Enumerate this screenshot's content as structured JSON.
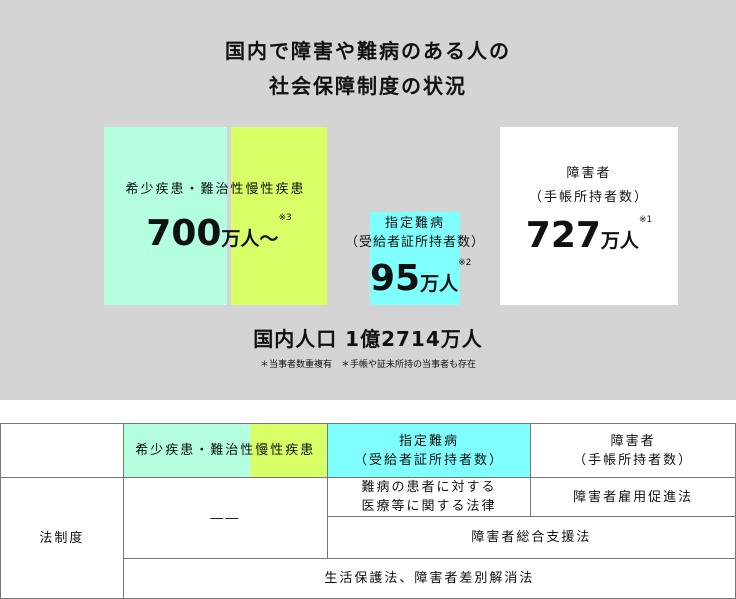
{
  "title": {
    "line1": "国内で障害や難病のある人の",
    "line2": "社会保障制度の状況"
  },
  "colors": {
    "background": "#d4d4d4",
    "rare_disease": "#b3ffe0",
    "chronic_disease": "#d8ff66",
    "designated": "#80ffff",
    "disabled": "#ffffff"
  },
  "rare": {
    "label": "希少疾患・難治性慢性疾患",
    "value": "700",
    "unit": "万人～",
    "note": "※3"
  },
  "designated": {
    "label1": "指定難病",
    "label2": "（受給者証所持者数）",
    "value": "95",
    "unit": "万人",
    "note": "※2"
  },
  "disabled": {
    "label1": "障害者",
    "label2": "（手帳所持者数）",
    "value": "727",
    "unit": "万人",
    "note": "※1"
  },
  "population": "国内人口 1億2714万人",
  "footnote": "＊当事者数重複有　＊手帳や証未所持の当事者も存在",
  "table": {
    "header": {
      "rare_a": "希少疾患・難治性",
      "rare_b": "慢性疾患",
      "designated1": "指定難病",
      "designated2": "（受給者証所持者数）",
      "disabled1": "障害者",
      "disabled2": "（手帳所持者数）"
    },
    "row_label": "法制度",
    "rare_law": "――",
    "designated_law1": "難病の患者に対する",
    "designated_law2": "医療等に関する法律",
    "disabled_law": "障害者雇用促進法",
    "shared_law": "障害者総合支援法",
    "all_law": "生活保護法、障害者差別解消法"
  }
}
